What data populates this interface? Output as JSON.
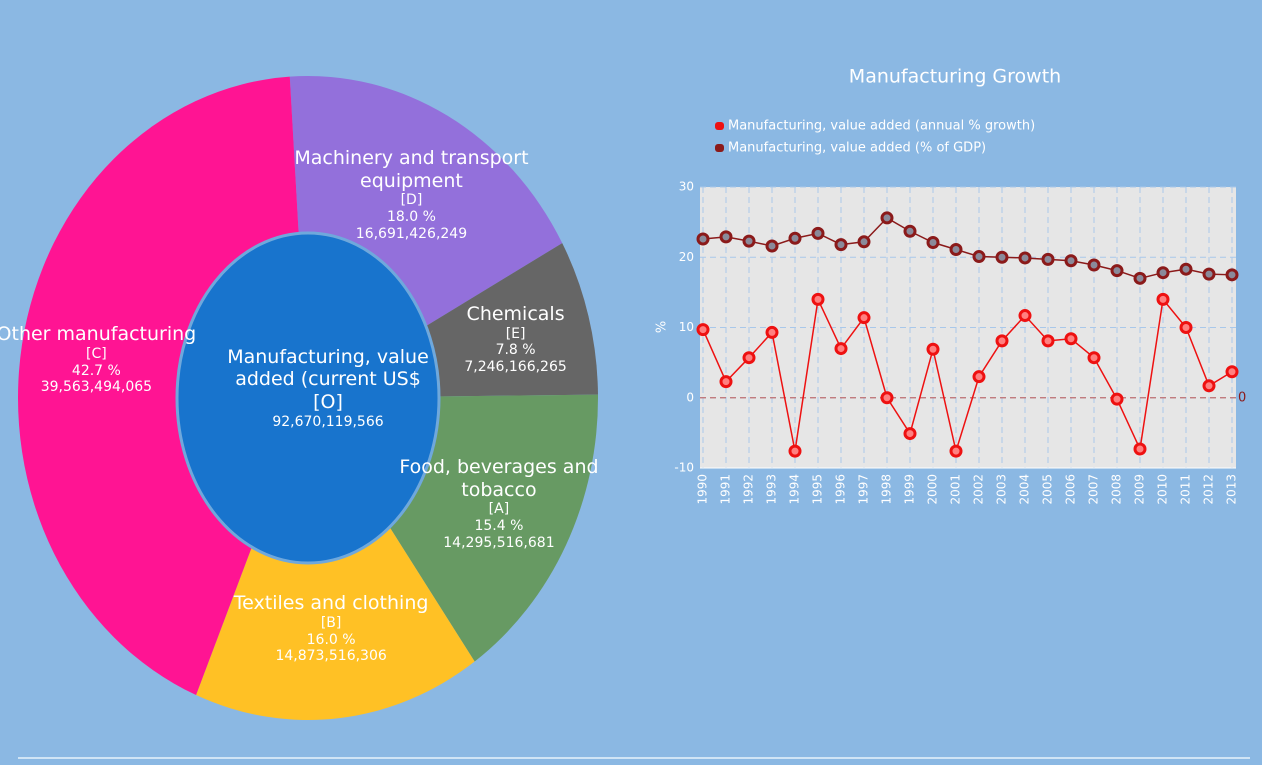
{
  "chart_data": [
    {
      "type": "donut",
      "center": {
        "label": "Manufacturing, value added (current US$",
        "code": "[O]",
        "value": 92670119566,
        "value_label": "92,670,119,566",
        "color": "#1874cd"
      },
      "categories": [
        "Machinery and transport equipment",
        "Chemicals",
        "Food, beverages and tobacco",
        "Textiles and clothing",
        "Other manufacturing"
      ],
      "codes": [
        "[D]",
        "[E]",
        "[A]",
        "[B]",
        "[C]"
      ],
      "values": [
        16691426249,
        7246166265,
        14295516681,
        14873516306,
        39563494065
      ],
      "value_labels": [
        "16,691,426,249",
        "7,246,166,265",
        "14,295,516,681",
        "14,873,516,306",
        "39,563,494,065"
      ],
      "percent_labels": [
        "18.0 %",
        "7.8 %",
        "15.4 %",
        "16.0 %",
        "42.7 %"
      ],
      "colors": [
        "#9370db",
        "#666666",
        "#679a63",
        "#ffc125",
        "#ff1493"
      ]
    },
    {
      "type": "line",
      "title": "Manufacturing Growth",
      "y_label": "%",
      "categories": [
        "1990",
        "1991",
        "1992",
        "1993",
        "1994",
        "1995",
        "1996",
        "1997",
        "1998",
        "1999",
        "2000",
        "2001",
        "2002",
        "2003",
        "2004",
        "2005",
        "2006",
        "2007",
        "2008",
        "2009",
        "2010",
        "2011",
        "2012",
        "2013"
      ],
      "series": [
        {
          "name": "Manufacturing, value added (annual % growth)",
          "color": "#ee1111",
          "values": [
            9.7,
            2.3,
            5.7,
            9.3,
            -7.6,
            14.0,
            7.0,
            11.4,
            0.0,
            -5.1,
            6.9,
            -7.6,
            3.0,
            8.1,
            11.7,
            8.1,
            8.4,
            5.7,
            -0.2,
            -7.3,
            14.0,
            10.0,
            1.7,
            3.7
          ]
        },
        {
          "name": "Manufacturing, value added (% of GDP)",
          "color": "#8b1a1a",
          "values": [
            22.6,
            22.9,
            22.3,
            21.6,
            22.7,
            23.4,
            21.8,
            22.2,
            25.6,
            23.7,
            22.1,
            21.1,
            20.1,
            20.0,
            19.9,
            19.7,
            19.5,
            18.9,
            18.1,
            17.0,
            17.8,
            18.3,
            17.6,
            17.5
          ]
        }
      ],
      "ylim": [
        -10,
        30
      ],
      "yticks": [
        -10,
        0,
        10,
        20,
        30
      ],
      "grid": true,
      "reference_line": 0
    }
  ]
}
